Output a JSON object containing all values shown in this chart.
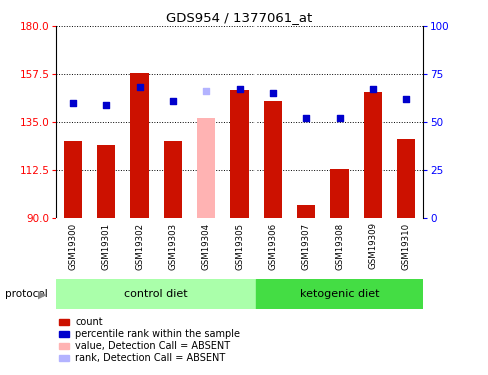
{
  "title": "GDS954 / 1377061_at",
  "samples": [
    "GSM19300",
    "GSM19301",
    "GSM19302",
    "GSM19303",
    "GSM19304",
    "GSM19305",
    "GSM19306",
    "GSM19307",
    "GSM19308",
    "GSM19309",
    "GSM19310"
  ],
  "bar_values": [
    126,
    124,
    158,
    126,
    137,
    150,
    145,
    96,
    113,
    149,
    127
  ],
  "bar_absent": [
    false,
    false,
    false,
    false,
    true,
    false,
    false,
    false,
    false,
    false,
    false
  ],
  "rank_values": [
    60,
    59,
    68,
    61,
    66,
    67,
    65,
    52,
    52,
    67,
    62
  ],
  "rank_absent": [
    false,
    false,
    false,
    false,
    true,
    false,
    false,
    false,
    false,
    false,
    false
  ],
  "ylim_left": [
    90,
    180
  ],
  "ylim_right": [
    0,
    100
  ],
  "yticks_left": [
    90,
    112.5,
    135,
    157.5,
    180
  ],
  "yticks_right": [
    0,
    25,
    50,
    75,
    100
  ],
  "bar_color_normal": "#cc1100",
  "bar_color_absent": "#ffb3b3",
  "rank_color_normal": "#0000cc",
  "rank_color_absent": "#b3b3ff",
  "bar_width": 0.55,
  "groups": [
    {
      "label": "control diet",
      "start": 0,
      "end": 5,
      "color": "#aaffaa"
    },
    {
      "label": "ketogenic diet",
      "start": 6,
      "end": 10,
      "color": "#44dd44"
    }
  ],
  "group_label": "protocol",
  "bg_color": "#d0d0d0",
  "legend_items": [
    {
      "label": "count",
      "color": "#cc1100"
    },
    {
      "label": "percentile rank within the sample",
      "color": "#0000cc"
    },
    {
      "label": "value, Detection Call = ABSENT",
      "color": "#ffb3b3"
    },
    {
      "label": "rank, Detection Call = ABSENT",
      "color": "#b3b3ff"
    }
  ]
}
